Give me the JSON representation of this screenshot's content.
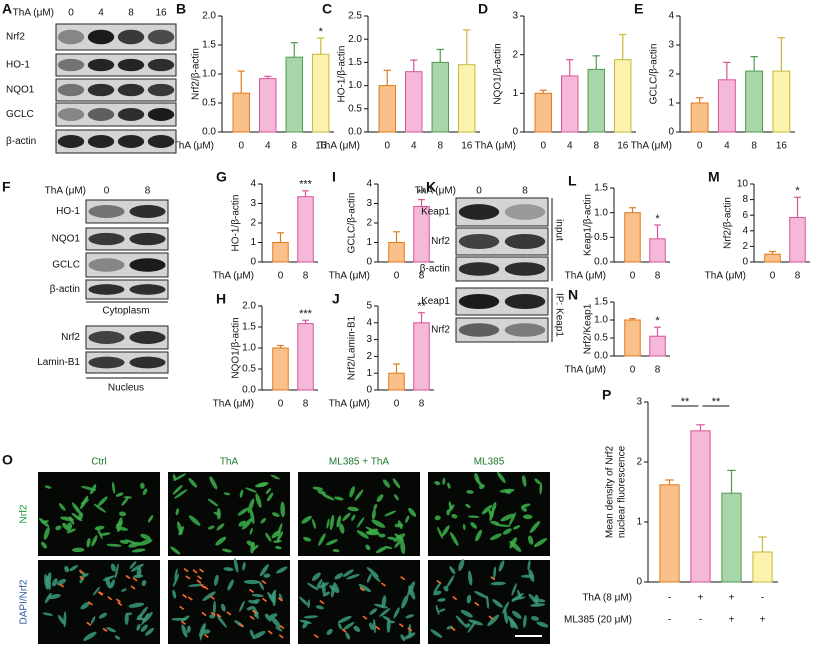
{
  "chart_data": [
    {
      "type": "bar",
      "panel": "B",
      "ylabel": "Nrf2/β-actin",
      "xlabel": "ThA (μM)",
      "categories": [
        "0",
        "4",
        "8",
        "16"
      ],
      "values": [
        0.67,
        0.92,
        1.29,
        1.34
      ],
      "errors": [
        0.38,
        0.04,
        0.25,
        0.28
      ],
      "colors": [
        "#f9c08a",
        "#f6b8d8",
        "#a9d6a8",
        "#fbf3ae"
      ],
      "edge_colors": [
        "#e07b20",
        "#d6559a",
        "#4f9a4e",
        "#c9b93a"
      ],
      "ylim": [
        0,
        2
      ],
      "yticks": [
        {
          "value": 0,
          "label": "0.0"
        },
        0.5,
        {
          "value": 1,
          "label": "1.0"
        },
        1.5,
        {
          "value": 2,
          "label": "2.0"
        }
      ],
      "annotations": [
        {
          "index": 3,
          "text": "*"
        }
      ]
    },
    {
      "type": "bar",
      "panel": "C",
      "ylabel": "HO-1/β-actin",
      "xlabel": "ThA (μM)",
      "categories": [
        "0",
        "4",
        "8",
        "16"
      ],
      "values": [
        1.0,
        1.3,
        1.5,
        1.45
      ],
      "errors": [
        0.33,
        0.25,
        0.28,
        0.75
      ],
      "colors": [
        "#f9c08a",
        "#f6b8d8",
        "#a9d6a8",
        "#fbf3ae"
      ],
      "edge_colors": [
        "#e07b20",
        "#d6559a",
        "#4f9a4e",
        "#c9b93a"
      ],
      "ylim": [
        0,
        2.5
      ],
      "yticks": [
        {
          "value": 0,
          "label": "0.0"
        },
        0.5,
        {
          "value": 1,
          "label": "1.0"
        },
        1.5,
        {
          "value": 2,
          "label": "2.0"
        },
        2.5
      ],
      "annotations": []
    },
    {
      "type": "bar",
      "panel": "D",
      "ylabel": "NQO1/β-actin",
      "xlabel": "ThA (μM)",
      "categories": [
        "0",
        "4",
        "8",
        "16"
      ],
      "values": [
        1.0,
        1.45,
        1.62,
        1.87
      ],
      "errors": [
        0.08,
        0.42,
        0.35,
        0.65
      ],
      "colors": [
        "#f9c08a",
        "#f6b8d8",
        "#a9d6a8",
        "#fbf3ae"
      ],
      "edge_colors": [
        "#e07b20",
        "#d6559a",
        "#4f9a4e",
        "#c9b93a"
      ],
      "ylim": [
        0,
        3
      ],
      "yticks": [
        0,
        1,
        2,
        3
      ],
      "annotations": []
    },
    {
      "type": "bar",
      "panel": "E",
      "ylabel": "GCLC/β-actin",
      "xlabel": "ThA (μM)",
      "categories": [
        "0",
        "4",
        "8",
        "16"
      ],
      "values": [
        1.0,
        1.8,
        2.1,
        2.1
      ],
      "errors": [
        0.18,
        0.6,
        0.5,
        1.15
      ],
      "colors": [
        "#f9c08a",
        "#f6b8d8",
        "#a9d6a8",
        "#fbf3ae"
      ],
      "edge_colors": [
        "#e07b20",
        "#d6559a",
        "#4f9a4e",
        "#c9b93a"
      ],
      "ylim": [
        0,
        4
      ],
      "yticks": [
        0,
        1,
        2,
        3,
        4
      ],
      "annotations": []
    },
    {
      "type": "bar",
      "panel": "G",
      "ylabel": "HO-1/β-actin",
      "xlabel": "ThA (μM)",
      "categories": [
        "0",
        "8"
      ],
      "values": [
        1.0,
        3.35
      ],
      "errors": [
        0.5,
        0.3
      ],
      "colors": [
        "#f9c08a",
        "#f6b8d8"
      ],
      "edge_colors": [
        "#e07b20",
        "#d6559a"
      ],
      "ylim": [
        0,
        4
      ],
      "yticks": [
        0,
        1,
        2,
        3,
        4
      ],
      "annotations": [
        {
          "index": 1,
          "text": "***"
        }
      ]
    },
    {
      "type": "bar",
      "panel": "H",
      "ylabel": "NQO1/β-actin",
      "xlabel": "ThA (μM)",
      "categories": [
        "0",
        "8"
      ],
      "values": [
        1.0,
        1.58
      ],
      "errors": [
        0.06,
        0.08
      ],
      "colors": [
        "#f9c08a",
        "#f6b8d8"
      ],
      "edge_colors": [
        "#e07b20",
        "#d6559a"
      ],
      "ylim": [
        0,
        2
      ],
      "yticks": [
        {
          "value": 0,
          "label": "0.0"
        },
        0.5,
        {
          "value": 1,
          "label": "1.0"
        },
        1.5,
        {
          "value": 2,
          "label": "2.0"
        }
      ],
      "annotations": [
        {
          "index": 1,
          "text": "***"
        }
      ]
    },
    {
      "type": "bar",
      "panel": "I",
      "ylabel": "GCLC/β-actin",
      "xlabel": "ThA (μM)",
      "categories": [
        "0",
        "8"
      ],
      "values": [
        1.0,
        2.85
      ],
      "errors": [
        0.55,
        0.35
      ],
      "colors": [
        "#f9c08a",
        "#f6b8d8"
      ],
      "edge_colors": [
        "#e07b20",
        "#d6559a"
      ],
      "ylim": [
        0,
        4
      ],
      "yticks": [
        0,
        1,
        2,
        3,
        4
      ],
      "annotations": [
        {
          "index": 1,
          "text": "**"
        }
      ]
    },
    {
      "type": "bar",
      "panel": "J",
      "ylabel": "Nrf2/Lamin-B1",
      "xlabel": "ThA (μM)",
      "categories": [
        "0",
        "8"
      ],
      "values": [
        1.0,
        4.0
      ],
      "errors": [
        0.55,
        0.6
      ],
      "colors": [
        "#f9c08a",
        "#f6b8d8"
      ],
      "edge_colors": [
        "#e07b20",
        "#d6559a"
      ],
      "ylim": [
        0,
        5
      ],
      "yticks": [
        0,
        1,
        2,
        3,
        4,
        5
      ],
      "annotations": [
        {
          "index": 1,
          "text": "**"
        }
      ]
    },
    {
      "type": "bar",
      "panel": "L",
      "ylabel": "Keap1/β-actin",
      "xlabel": "ThA (μM)",
      "categories": [
        "0",
        "8"
      ],
      "values": [
        1.0,
        0.47
      ],
      "errors": [
        0.1,
        0.28
      ],
      "colors": [
        "#f9c08a",
        "#f6b8d8"
      ],
      "edge_colors": [
        "#e07b20",
        "#d6559a"
      ],
      "ylim": [
        0,
        1.5
      ],
      "yticks": [
        {
          "value": 0,
          "label": "0.0"
        },
        0.5,
        {
          "value": 1,
          "label": "1.0"
        },
        1.5
      ],
      "annotations": [
        {
          "index": 1,
          "text": "*"
        }
      ]
    },
    {
      "type": "bar",
      "panel": "M",
      "ylabel": "Nrf2/β-actin",
      "xlabel": "ThA (μM)",
      "categories": [
        "0",
        "8"
      ],
      "values": [
        1.0,
        5.7
      ],
      "errors": [
        0.35,
        2.6
      ],
      "colors": [
        "#f9c08a",
        "#f6b8d8"
      ],
      "edge_colors": [
        "#e07b20",
        "#d6559a"
      ],
      "ylim": [
        0,
        10
      ],
      "yticks": [
        0,
        2,
        4,
        6,
        8,
        10
      ],
      "annotations": [
        {
          "index": 1,
          "text": "*"
        }
      ]
    },
    {
      "type": "bar",
      "panel": "N",
      "ylabel": "Nrf2/Keap1",
      "xlabel": "ThA (μM)",
      "categories": [
        "0",
        "8"
      ],
      "values": [
        1.0,
        0.55
      ],
      "errors": [
        0.04,
        0.25
      ],
      "colors": [
        "#f9c08a",
        "#f6b8d8"
      ],
      "edge_colors": [
        "#e07b20",
        "#d6559a"
      ],
      "ylim": [
        0,
        1.5
      ],
      "yticks": [
        {
          "value": 0,
          "label": "0.0"
        },
        0.5,
        {
          "value": 1,
          "label": "1.0"
        },
        1.5
      ],
      "annotations": [
        {
          "index": 1,
          "text": "*"
        }
      ]
    },
    {
      "type": "bar",
      "panel": "P",
      "ylabel": [
        "Mean density of Nrf2",
        "nuclear fluorescence"
      ],
      "values": [
        1.62,
        2.52,
        1.48,
        0.5
      ],
      "errors": [
        0.08,
        0.1,
        0.38,
        0.25
      ],
      "colors": [
        "#f9c08a",
        "#f6b8d8",
        "#a9d6a8",
        "#fbf3ae"
      ],
      "edge_colors": [
        "#e07b20",
        "#d6559a",
        "#4f9a4e",
        "#c9b93a"
      ],
      "ylim": [
        0,
        3
      ],
      "yticks": [
        0,
        1,
        2,
        3
      ],
      "brackets": [
        {
          "from": 0,
          "to": 1,
          "text": "**"
        },
        {
          "from": 1,
          "to": 2,
          "text": "**"
        }
      ],
      "conditions": [
        {
          "name": "ThA (8 μM)",
          "values": [
            "-",
            "+",
            "+",
            "-"
          ]
        },
        {
          "name": "ML385 (20 μM)",
          "values": [
            "-",
            "-",
            "+",
            "+"
          ]
        }
      ]
    }
  ],
  "blots": [
    {
      "panel": "A",
      "header": "ThA (μM)",
      "lanes": [
        "0",
        "4",
        "8",
        "16"
      ],
      "rows": [
        "Nrf2",
        "HO-1",
        "NQO1",
        "GCLC",
        "β-actin"
      ],
      "sections": []
    },
    {
      "panel": "F",
      "header": "ThA (μM)",
      "lanes": [
        "0",
        "8"
      ],
      "rows": [
        "HO-1",
        "NQO1",
        "GCLC",
        "β-actin",
        "Nrf2",
        "Lamin-B1"
      ],
      "sections": [
        "Cytoplasm",
        "Nucleus"
      ]
    },
    {
      "panel": "K",
      "header": "ThA (μM)",
      "lanes": [
        "0",
        "8"
      ],
      "rows": [
        "Keap1",
        "Nrf2",
        "β-actin",
        "Keap1",
        "Nrf2"
      ],
      "sections": [
        "input",
        "IP: Keap1"
      ]
    }
  ],
  "images": {
    "panel": "O",
    "columns": [
      "Ctrl",
      "ThA",
      "ML385 + ThA",
      "ML385"
    ],
    "rows": [
      "Nrf2",
      "DAPI/Nrf2"
    ]
  }
}
